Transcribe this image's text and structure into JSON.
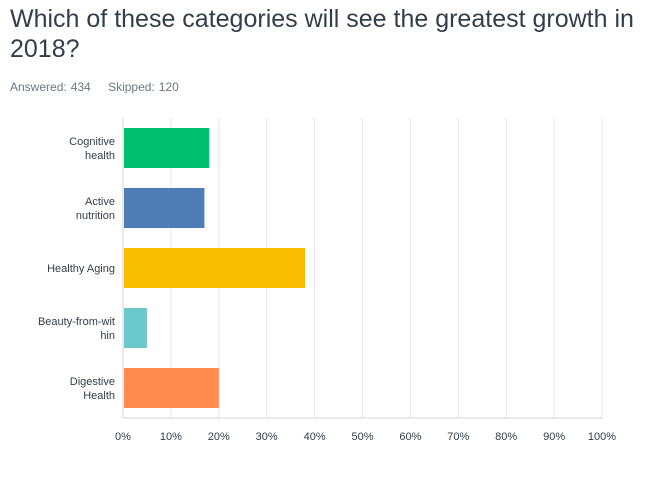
{
  "question": {
    "title": "Which of these categories will see the greatest growth in 2018?"
  },
  "stats": {
    "answered_label": "Answered:",
    "answered": "434",
    "skipped_label": "Skipped:",
    "skipped": "120"
  },
  "chart_data": {
    "type": "bar",
    "orientation": "horizontal",
    "categories": [
      [
        "Cognitive",
        "health"
      ],
      [
        "Active",
        "nutrition"
      ],
      [
        "Healthy Aging"
      ],
      [
        "Beauty-from-wit",
        "hin"
      ],
      [
        "Digestive",
        "Health"
      ]
    ],
    "values": [
      18,
      17,
      38,
      5,
      20
    ],
    "colors": [
      "#00bf6f",
      "#507cb6",
      "#f9be00",
      "#6bc8cd",
      "#ff8b4f"
    ],
    "xlim": [
      0,
      100
    ],
    "xticks": [
      0,
      10,
      20,
      30,
      40,
      50,
      60,
      70,
      80,
      90,
      100
    ],
    "tick_labels": [
      "0%",
      "10%",
      "20%",
      "30%",
      "40%",
      "50%",
      "60%",
      "70%",
      "80%",
      "90%",
      "100%"
    ],
    "grid": true,
    "legend": "none",
    "grid_color": "#e5e5e5",
    "axis_color": "#d0d3d5"
  }
}
